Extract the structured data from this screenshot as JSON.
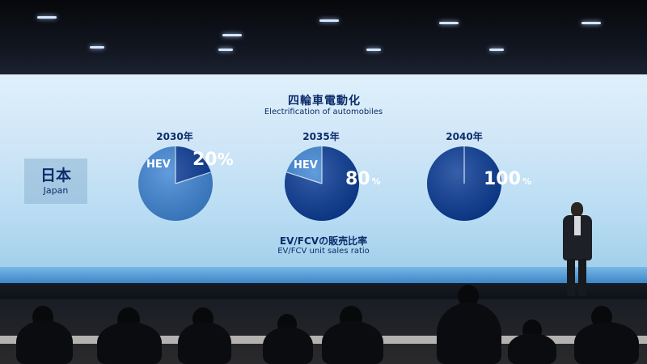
{
  "slide": {
    "title_jp": "四輪車電動化",
    "title_en": "Electrification of automobiles",
    "country_jp": "日本",
    "country_en": "Japan",
    "footer_jp": "EV/FCVの販売比率",
    "footer_en": "EV/FCV unit sales ratio"
  },
  "pies": [
    {
      "year": "2030年",
      "hev_label": "HEV",
      "percent": "20",
      "unit": "%",
      "ev_share": 0.2
    },
    {
      "year": "2035年",
      "hev_label": "HEV",
      "percent": "80",
      "unit": "%",
      "ev_share": 0.8
    },
    {
      "year": "2040年",
      "hev_label": "",
      "percent": "100",
      "unit": "%",
      "ev_share": 1.0
    }
  ],
  "colors": {
    "ev_dark": "#0b3c97",
    "hev_light": "#3f86d6",
    "text": "#0c2d6b"
  }
}
